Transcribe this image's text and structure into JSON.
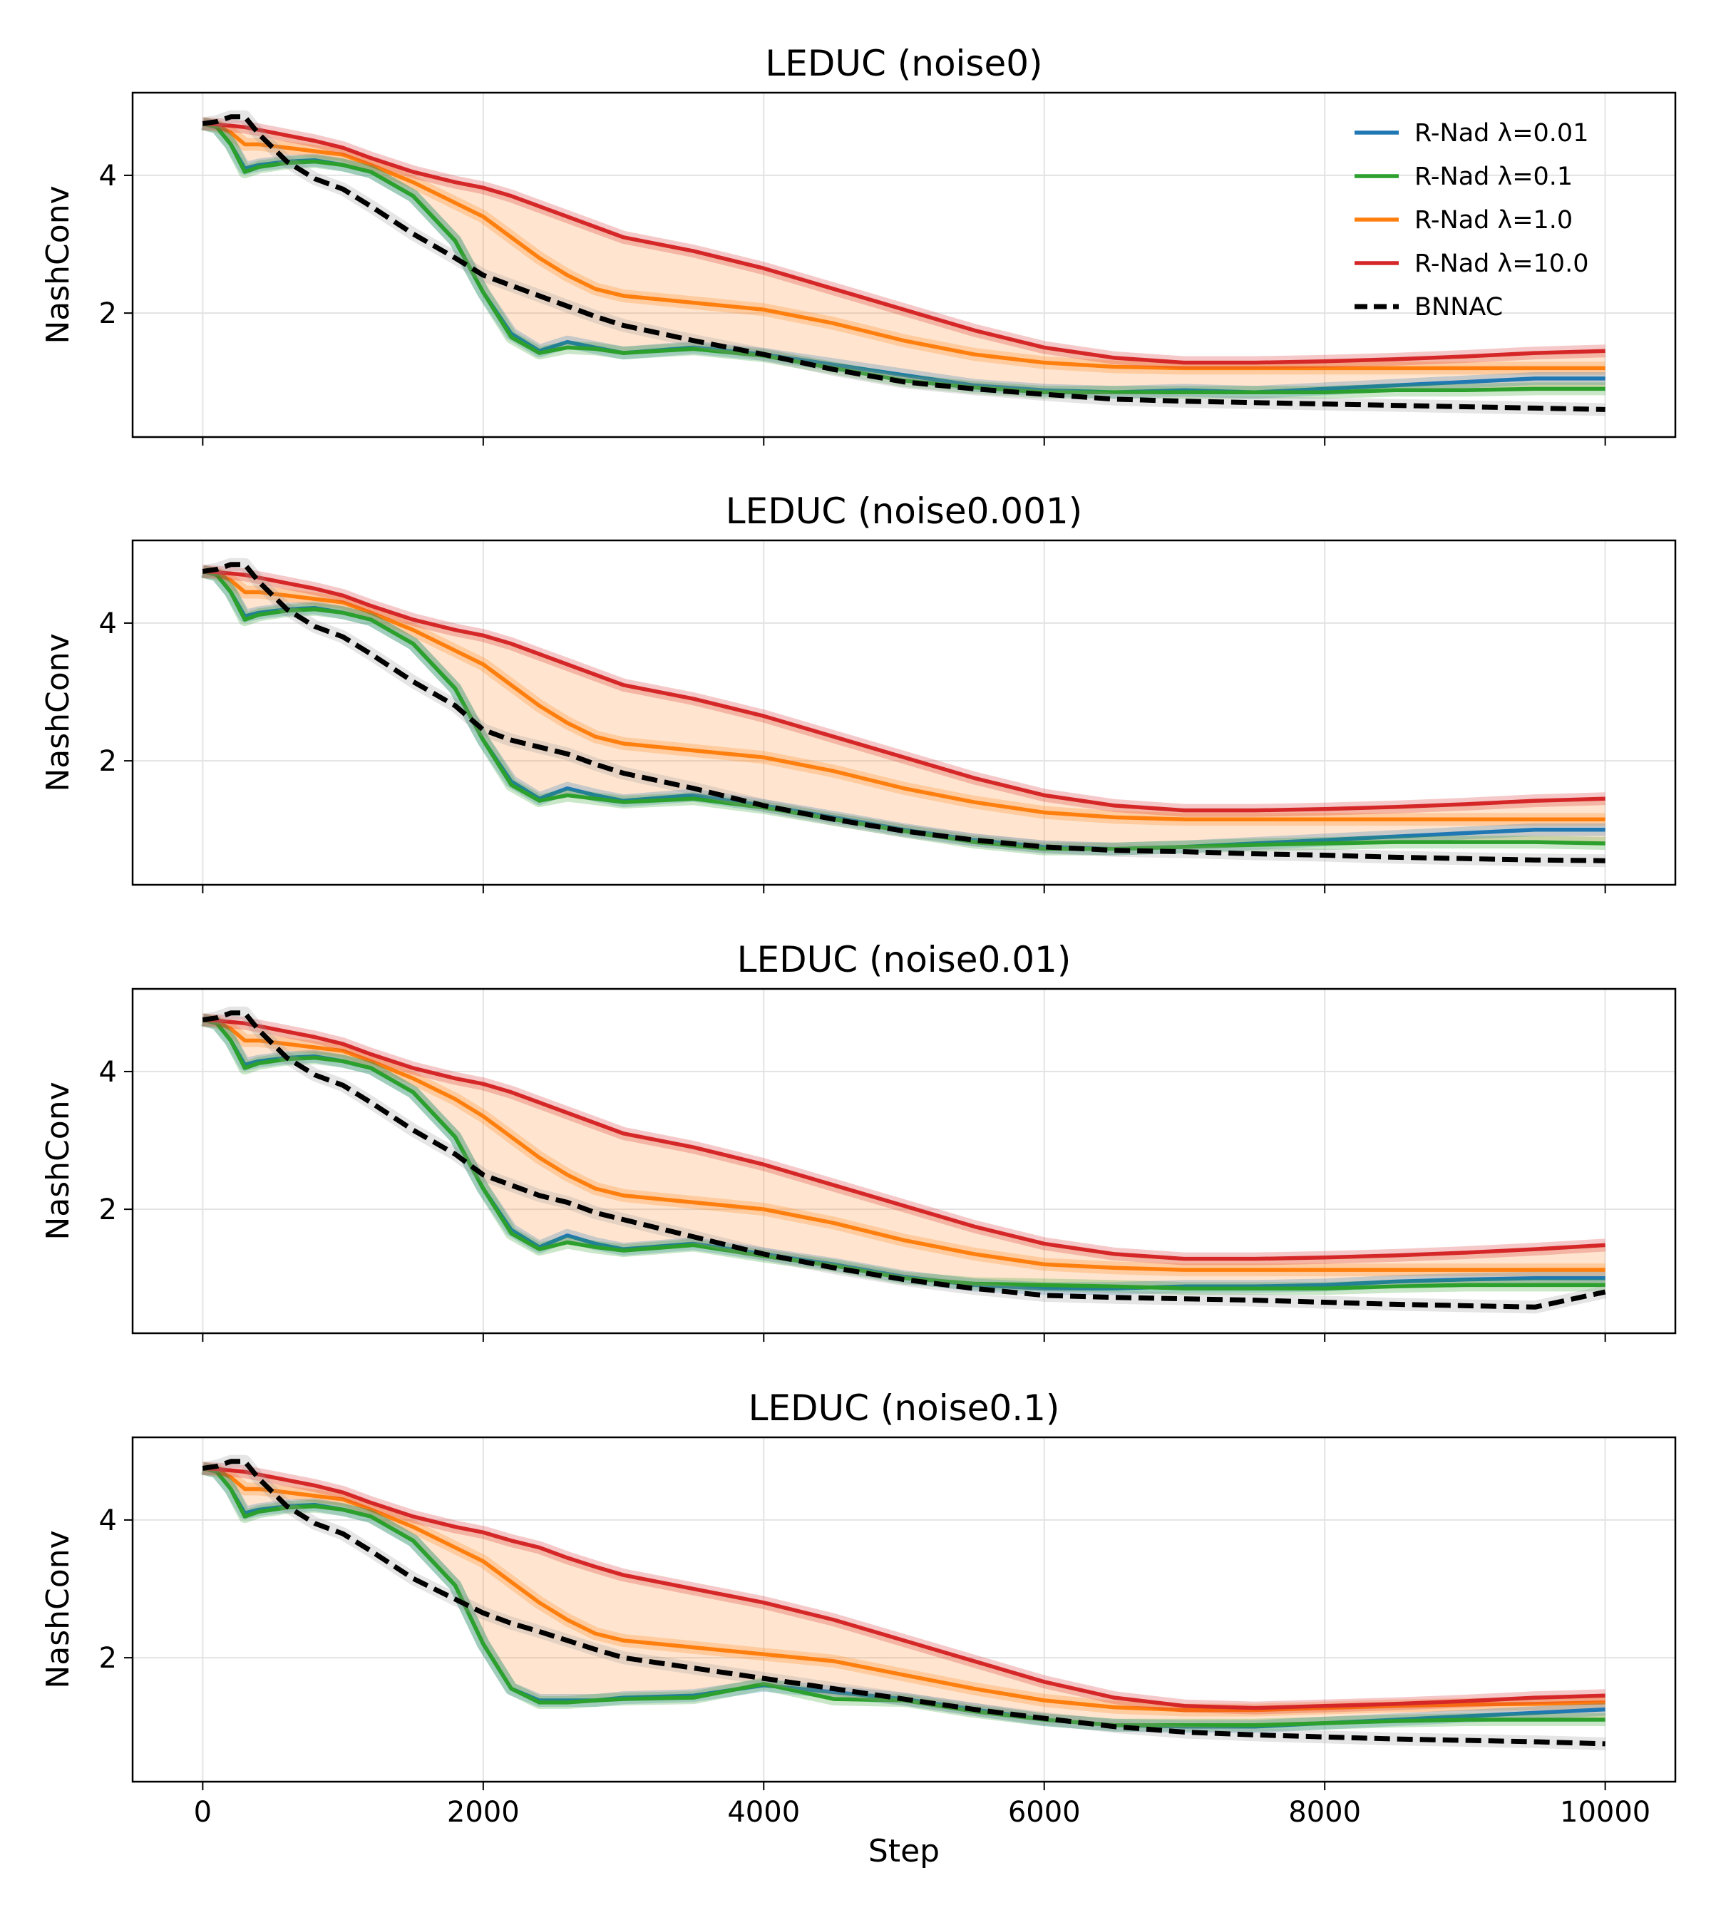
{
  "chart_data": [
    {
      "type": "line",
      "title": "LEDUC (noise0)",
      "xlabel": "",
      "ylabel": "NashConv",
      "xlim": [
        -500,
        10500
      ],
      "ylim": [
        0.2,
        5.2
      ],
      "xticks": [
        0,
        2000,
        4000,
        6000,
        8000,
        10000
      ],
      "yticks": [
        2,
        4
      ],
      "legend": "top-right",
      "x": [
        0,
        100,
        200,
        300,
        400,
        600,
        800,
        1000,
        1200,
        1500,
        1800,
        2000,
        2200,
        2400,
        2600,
        2800,
        3000,
        3500,
        4000,
        4500,
        5000,
        5500,
        6000,
        6500,
        7000,
        7500,
        8000,
        8500,
        9000,
        9500,
        10000
      ],
      "series": [
        {
          "name": "R-Nad λ=0.01",
          "color": "#1f77b4",
          "values": [
            4.75,
            4.7,
            4.45,
            4.1,
            4.15,
            4.2,
            4.22,
            4.15,
            4.05,
            3.7,
            3.05,
            2.3,
            1.7,
            1.45,
            1.58,
            1.5,
            1.42,
            1.5,
            1.4,
            1.25,
            1.1,
            0.95,
            0.88,
            0.85,
            0.88,
            0.85,
            0.9,
            0.95,
            1.0,
            1.05,
            1.05
          ]
        },
        {
          "name": "R-Nad λ=0.1",
          "color": "#2ca02c",
          "values": [
            4.75,
            4.7,
            4.45,
            4.05,
            4.12,
            4.18,
            4.2,
            4.15,
            4.05,
            3.7,
            3.05,
            2.3,
            1.65,
            1.42,
            1.5,
            1.48,
            1.42,
            1.48,
            1.38,
            1.2,
            1.02,
            0.92,
            0.85,
            0.85,
            0.85,
            0.85,
            0.85,
            0.88,
            0.88,
            0.9,
            0.9
          ]
        },
        {
          "name": "R-Nad λ=1.0",
          "color": "#ff7f0e",
          "values": [
            4.75,
            4.72,
            4.62,
            4.45,
            4.45,
            4.4,
            4.35,
            4.3,
            4.15,
            3.9,
            3.6,
            3.4,
            3.1,
            2.8,
            2.55,
            2.35,
            2.25,
            2.15,
            2.05,
            1.85,
            1.6,
            1.4,
            1.28,
            1.22,
            1.2,
            1.2,
            1.2,
            1.2,
            1.2,
            1.2,
            1.2
          ]
        },
        {
          "name": "R-Nad λ=10.0",
          "color": "#d62728",
          "values": [
            4.75,
            4.74,
            4.72,
            4.7,
            4.66,
            4.58,
            4.5,
            4.4,
            4.25,
            4.05,
            3.9,
            3.82,
            3.7,
            3.55,
            3.4,
            3.25,
            3.1,
            2.9,
            2.65,
            2.35,
            2.05,
            1.75,
            1.5,
            1.35,
            1.28,
            1.28,
            1.3,
            1.33,
            1.37,
            1.42,
            1.45
          ]
        },
        {
          "name": "BNNAC",
          "color": "#000000",
          "values": [
            4.75,
            4.78,
            4.85,
            4.85,
            4.6,
            4.2,
            3.95,
            3.8,
            3.55,
            3.15,
            2.8,
            2.55,
            2.4,
            2.25,
            2.1,
            1.95,
            1.82,
            1.6,
            1.4,
            1.18,
            1.0,
            0.9,
            0.82,
            0.75,
            0.72,
            0.7,
            0.68,
            0.66,
            0.64,
            0.62,
            0.6
          ]
        }
      ]
    },
    {
      "type": "line",
      "title": "LEDUC (noise0.001)",
      "xlabel": "",
      "ylabel": "NashConv",
      "xlim": [
        -500,
        10500
      ],
      "ylim": [
        0.2,
        5.2
      ],
      "xticks": [
        0,
        2000,
        4000,
        6000,
        8000,
        10000
      ],
      "yticks": [
        2,
        4
      ],
      "x": [
        0,
        100,
        200,
        300,
        400,
        600,
        800,
        1000,
        1200,
        1500,
        1800,
        2000,
        2200,
        2400,
        2600,
        2800,
        3000,
        3500,
        4000,
        4500,
        5000,
        5500,
        6000,
        6500,
        7000,
        7500,
        8000,
        8500,
        9000,
        9500,
        10000
      ],
      "series": [
        {
          "name": "R-Nad λ=0.01",
          "color": "#1f77b4",
          "values": [
            4.75,
            4.7,
            4.45,
            4.1,
            4.15,
            4.2,
            4.22,
            4.15,
            4.05,
            3.7,
            3.05,
            2.3,
            1.7,
            1.45,
            1.6,
            1.5,
            1.42,
            1.5,
            1.35,
            1.18,
            1.0,
            0.85,
            0.75,
            0.72,
            0.75,
            0.8,
            0.85,
            0.9,
            0.95,
            1.0,
            1.0
          ]
        },
        {
          "name": "R-Nad λ=0.1",
          "color": "#2ca02c",
          "values": [
            4.75,
            4.7,
            4.45,
            4.05,
            4.12,
            4.18,
            4.2,
            4.15,
            4.05,
            3.7,
            3.05,
            2.3,
            1.65,
            1.42,
            1.5,
            1.45,
            1.4,
            1.45,
            1.32,
            1.15,
            0.98,
            0.82,
            0.72,
            0.72,
            0.75,
            0.78,
            0.8,
            0.82,
            0.82,
            0.82,
            0.8
          ]
        },
        {
          "name": "R-Nad λ=1.0",
          "color": "#ff7f0e",
          "values": [
            4.75,
            4.72,
            4.62,
            4.45,
            4.45,
            4.4,
            4.35,
            4.3,
            4.15,
            3.9,
            3.6,
            3.4,
            3.1,
            2.8,
            2.55,
            2.35,
            2.25,
            2.15,
            2.05,
            1.85,
            1.6,
            1.4,
            1.25,
            1.18,
            1.15,
            1.15,
            1.15,
            1.15,
            1.15,
            1.15,
            1.15
          ]
        },
        {
          "name": "R-Nad λ=10.0",
          "color": "#d62728",
          "values": [
            4.75,
            4.74,
            4.72,
            4.7,
            4.66,
            4.58,
            4.5,
            4.4,
            4.25,
            4.05,
            3.9,
            3.82,
            3.7,
            3.55,
            3.4,
            3.25,
            3.1,
            2.9,
            2.65,
            2.35,
            2.05,
            1.75,
            1.5,
            1.35,
            1.28,
            1.28,
            1.3,
            1.33,
            1.37,
            1.42,
            1.45
          ]
        },
        {
          "name": "BNNAC",
          "color": "#000000",
          "values": [
            4.75,
            4.78,
            4.85,
            4.85,
            4.6,
            4.2,
            3.95,
            3.8,
            3.55,
            3.15,
            2.8,
            2.45,
            2.3,
            2.2,
            2.1,
            1.95,
            1.82,
            1.6,
            1.35,
            1.15,
            0.98,
            0.85,
            0.75,
            0.7,
            0.68,
            0.65,
            0.63,
            0.6,
            0.58,
            0.56,
            0.55
          ]
        }
      ]
    },
    {
      "type": "line",
      "title": "LEDUC (noise0.01)",
      "xlabel": "",
      "ylabel": "NashConv",
      "xlim": [
        -500,
        10500
      ],
      "ylim": [
        0.2,
        5.2
      ],
      "xticks": [
        0,
        2000,
        4000,
        6000,
        8000,
        10000
      ],
      "yticks": [
        2,
        4
      ],
      "x": [
        0,
        100,
        200,
        300,
        400,
        600,
        800,
        1000,
        1200,
        1500,
        1800,
        2000,
        2200,
        2400,
        2600,
        2800,
        3000,
        3500,
        4000,
        4500,
        5000,
        5500,
        6000,
        6500,
        7000,
        7500,
        8000,
        8500,
        9000,
        9500,
        10000
      ],
      "series": [
        {
          "name": "R-Nad λ=0.01",
          "color": "#1f77b4",
          "values": [
            4.75,
            4.7,
            4.45,
            4.1,
            4.15,
            4.2,
            4.22,
            4.15,
            4.05,
            3.7,
            3.05,
            2.3,
            1.7,
            1.45,
            1.62,
            1.5,
            1.42,
            1.5,
            1.35,
            1.2,
            1.02,
            0.9,
            0.85,
            0.85,
            0.88,
            0.88,
            0.9,
            0.95,
            0.98,
            1.0,
            1.0
          ]
        },
        {
          "name": "R-Nad λ=0.1",
          "color": "#2ca02c",
          "values": [
            4.75,
            4.7,
            4.45,
            4.05,
            4.12,
            4.18,
            4.2,
            4.15,
            4.05,
            3.7,
            3.05,
            2.3,
            1.65,
            1.42,
            1.52,
            1.45,
            1.4,
            1.48,
            1.32,
            1.18,
            1.0,
            0.92,
            0.9,
            0.88,
            0.85,
            0.85,
            0.85,
            0.88,
            0.9,
            0.9,
            0.9
          ]
        },
        {
          "name": "R-Nad λ=1.0",
          "color": "#ff7f0e",
          "values": [
            4.75,
            4.72,
            4.62,
            4.45,
            4.45,
            4.4,
            4.35,
            4.3,
            4.15,
            3.9,
            3.6,
            3.35,
            3.05,
            2.75,
            2.5,
            2.3,
            2.2,
            2.1,
            2.0,
            1.8,
            1.55,
            1.35,
            1.2,
            1.15,
            1.12,
            1.12,
            1.12,
            1.12,
            1.12,
            1.12,
            1.12
          ]
        },
        {
          "name": "R-Nad λ=10.0",
          "color": "#d62728",
          "values": [
            4.75,
            4.74,
            4.72,
            4.7,
            4.66,
            4.58,
            4.5,
            4.4,
            4.25,
            4.05,
            3.9,
            3.82,
            3.7,
            3.55,
            3.4,
            3.25,
            3.1,
            2.9,
            2.65,
            2.35,
            2.05,
            1.75,
            1.5,
            1.35,
            1.28,
            1.28,
            1.3,
            1.33,
            1.37,
            1.42,
            1.48
          ]
        },
        {
          "name": "BNNAC",
          "color": "#000000",
          "values": [
            4.75,
            4.78,
            4.85,
            4.85,
            4.6,
            4.2,
            3.95,
            3.8,
            3.55,
            3.15,
            2.8,
            2.5,
            2.35,
            2.2,
            2.1,
            1.95,
            1.85,
            1.6,
            1.35,
            1.15,
            0.98,
            0.85,
            0.75,
            0.72,
            0.7,
            0.68,
            0.65,
            0.62,
            0.6,
            0.58,
            0.8
          ]
        }
      ]
    },
    {
      "type": "line",
      "title": "LEDUC (noise0.1)",
      "xlabel": "Step",
      "ylabel": "NashConv",
      "xlim": [
        -500,
        10500
      ],
      "ylim": [
        0.2,
        5.2
      ],
      "xticks": [
        0,
        2000,
        4000,
        6000,
        8000,
        10000
      ],
      "yticks": [
        2,
        4
      ],
      "x": [
        0,
        100,
        200,
        300,
        400,
        600,
        800,
        1000,
        1200,
        1500,
        1800,
        2000,
        2200,
        2400,
        2600,
        2800,
        3000,
        3500,
        4000,
        4500,
        5000,
        5500,
        6000,
        6500,
        7000,
        7500,
        8000,
        8500,
        9000,
        9500,
        10000
      ],
      "series": [
        {
          "name": "R-Nad λ=0.01",
          "color": "#1f77b4",
          "values": [
            4.75,
            4.7,
            4.45,
            4.1,
            4.15,
            4.2,
            4.22,
            4.15,
            4.05,
            3.7,
            3.05,
            2.2,
            1.55,
            1.38,
            1.38,
            1.38,
            1.42,
            1.45,
            1.6,
            1.5,
            1.4,
            1.25,
            1.1,
            1.02,
            1.0,
            1.0,
            1.05,
            1.1,
            1.15,
            1.2,
            1.25
          ]
        },
        {
          "name": "R-Nad λ=0.1",
          "color": "#2ca02c",
          "values": [
            4.75,
            4.7,
            4.45,
            4.05,
            4.12,
            4.18,
            4.2,
            4.15,
            4.05,
            3.7,
            3.05,
            2.2,
            1.55,
            1.35,
            1.35,
            1.38,
            1.4,
            1.42,
            1.62,
            1.4,
            1.38,
            1.22,
            1.1,
            1.02,
            1.02,
            1.02,
            1.05,
            1.08,
            1.1,
            1.1,
            1.1
          ]
        },
        {
          "name": "R-Nad λ=1.0",
          "color": "#ff7f0e",
          "values": [
            4.75,
            4.72,
            4.62,
            4.45,
            4.45,
            4.4,
            4.35,
            4.3,
            4.15,
            3.9,
            3.6,
            3.4,
            3.1,
            2.8,
            2.55,
            2.35,
            2.25,
            2.15,
            2.05,
            1.95,
            1.75,
            1.55,
            1.38,
            1.28,
            1.24,
            1.24,
            1.27,
            1.3,
            1.32,
            1.33,
            1.35
          ]
        },
        {
          "name": "R-Nad λ=10.0",
          "color": "#d62728",
          "values": [
            4.75,
            4.74,
            4.72,
            4.7,
            4.66,
            4.58,
            4.5,
            4.4,
            4.25,
            4.05,
            3.9,
            3.82,
            3.7,
            3.6,
            3.45,
            3.32,
            3.2,
            3.0,
            2.8,
            2.55,
            2.25,
            1.95,
            1.65,
            1.42,
            1.3,
            1.27,
            1.3,
            1.33,
            1.37,
            1.42,
            1.45
          ]
        },
        {
          "name": "BNNAC",
          "color": "#000000",
          "values": [
            4.75,
            4.78,
            4.85,
            4.85,
            4.6,
            4.2,
            3.95,
            3.8,
            3.55,
            3.15,
            2.85,
            2.65,
            2.5,
            2.38,
            2.25,
            2.12,
            2.0,
            1.85,
            1.7,
            1.55,
            1.4,
            1.25,
            1.12,
            1.0,
            0.92,
            0.88,
            0.85,
            0.82,
            0.8,
            0.78,
            0.75
          ]
        }
      ]
    }
  ]
}
